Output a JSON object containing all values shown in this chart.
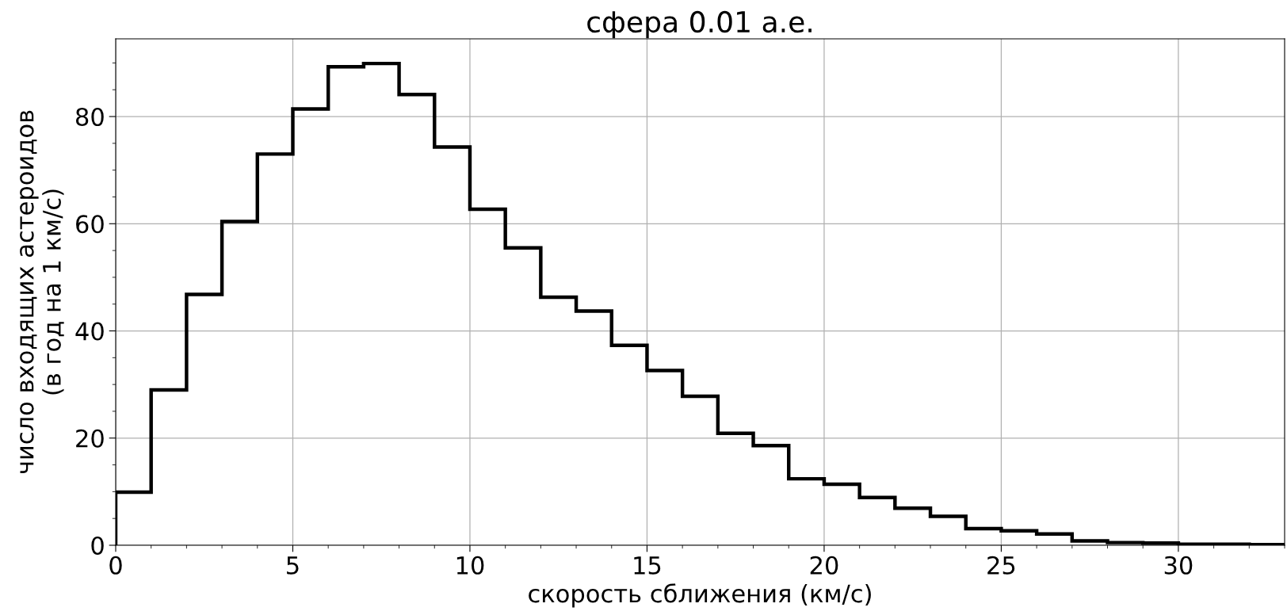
{
  "chart_data": {
    "type": "histogram",
    "title": "сфера 0.01 а.е.",
    "xlabel": "скорость сближения (км/с)",
    "ylabel": "число входящих астероидов\n(в год на 1 км/с)",
    "bins": [
      0,
      1,
      2,
      3,
      4,
      5,
      6,
      7,
      8,
      9,
      10,
      11,
      12,
      13,
      14,
      15,
      16,
      17,
      18,
      19,
      20,
      21,
      22,
      23,
      24,
      25,
      26,
      27,
      28,
      29,
      30,
      31,
      32,
      33
    ],
    "values": [
      9.9,
      29.0,
      46.8,
      60.4,
      73.0,
      81.4,
      89.3,
      89.9,
      84.1,
      74.3,
      62.7,
      55.5,
      46.3,
      43.7,
      37.3,
      32.6,
      27.8,
      20.9,
      18.6,
      12.4,
      11.4,
      8.9,
      6.9,
      5.4,
      3.1,
      2.7,
      2.1,
      0.8,
      0.5,
      0.4,
      0.2,
      0.2,
      0.1
    ],
    "color": "#000000",
    "xlim": [
      0,
      33
    ],
    "xticks": [
      0,
      5,
      10,
      15,
      20,
      25,
      30
    ],
    "ylim": [
      0,
      94.5
    ],
    "yticks": [
      0,
      20,
      40,
      60,
      80
    ],
    "grid": true
  }
}
